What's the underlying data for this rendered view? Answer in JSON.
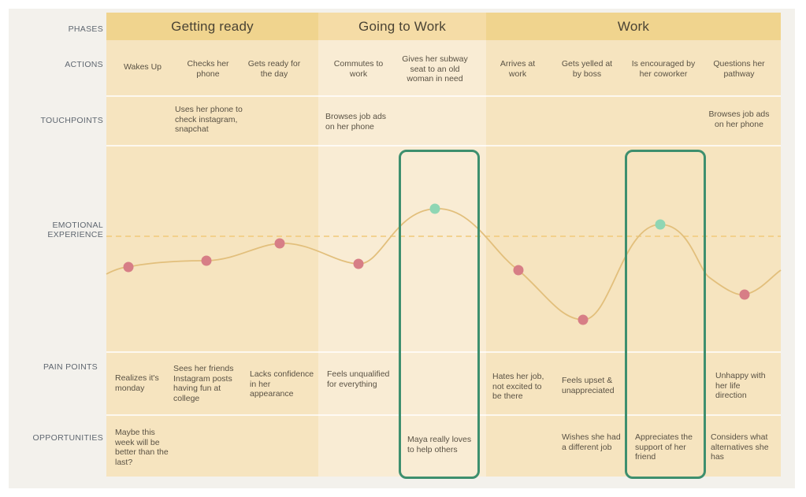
{
  "row_labels": {
    "phases": "PHASES",
    "actions": "ACTIONS",
    "touchpoints": "TOUCHPOINTS",
    "emotional_1": "EMOTIONAL",
    "emotional_2": "EXPERIENCE",
    "pain_points": "PAIN POINTS",
    "opportunities": "OPPORTUNITIES"
  },
  "phases": [
    {
      "label": "Getting ready",
      "color": "#f0d48e",
      "bg": "#f6e4bf"
    },
    {
      "label": "Going to Work",
      "color": "#f5dca6",
      "bg": "#f9ecd4"
    },
    {
      "label": "Work",
      "color": "#f0d48e",
      "bg": "#f6e4bf"
    }
  ],
  "actions": [
    "Wakes Up",
    "Checks her phone",
    "Gets ready for the day",
    "Commutes to work",
    "Gives her subway seat to an old woman in need",
    "Arrives at work",
    "Gets yelled at by boss",
    "Is encouraged by her coworker",
    "Questions her pathway"
  ],
  "touchpoints": [
    "Uses her phone to check instagram, snapchat",
    "Browses job ads on her phone",
    "Browses job ads on her phone"
  ],
  "pain_points": [
    "Realizes it's monday",
    "Sees her friends Instagram posts having fun at college",
    "Lacks confidence in her appearance",
    "Feels unqualified for everything",
    "Hates her job, not excited to be there",
    "Feels upset & unappreciated",
    "Unhappy with her life direction"
  ],
  "opportunities": [
    "Maybe this week will be better than the last?",
    "Maya really loves to help others",
    "Wishes she had a different job",
    "Appreciates the support of her friend",
    "Considers what alternatives she has"
  ],
  "colors": {
    "curve": "#e2bf7c",
    "negative_point": "#d77e86",
    "positive_point": "#8fd6b4",
    "highlight_box": "#3e8f6e",
    "baseline": "#f0c97a"
  },
  "emotion_points": [
    {
      "step": 1,
      "sentiment": "negative"
    },
    {
      "step": 2,
      "sentiment": "negative"
    },
    {
      "step": 3,
      "sentiment": "negative"
    },
    {
      "step": 4,
      "sentiment": "negative"
    },
    {
      "step": 5,
      "sentiment": "positive"
    },
    {
      "step": 6,
      "sentiment": "negative"
    },
    {
      "step": 7,
      "sentiment": "negative"
    },
    {
      "step": 8,
      "sentiment": "positive"
    },
    {
      "step": 9,
      "sentiment": "negative"
    }
  ]
}
